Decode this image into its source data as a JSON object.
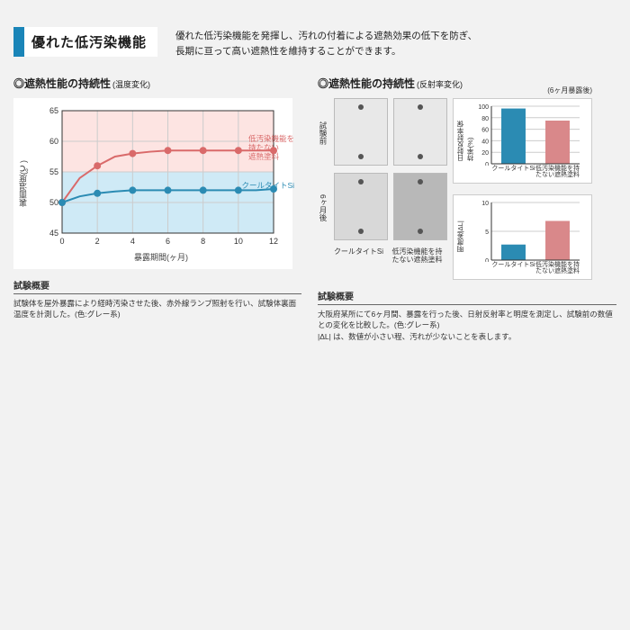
{
  "header": {
    "title": "優れた低汚染機能",
    "intro_line1": "優れた低汚染機能を発揮し、汚れの付着による遮熱効果の低下を防ぎ、",
    "intro_line2": "長期に亘って高い遮熱性を維持することができます。"
  },
  "left": {
    "subheading_prefix": "◎遮熱性能の持続性",
    "subheading_paren": "(温度変化)",
    "chart": {
      "type": "line",
      "background_color": "#ffffff",
      "plot_upper_fill": "#fde4e2",
      "plot_lower_fill": "#cfeaf6",
      "grid_color": "#cccccc",
      "border_color": "#333333",
      "xlim": [
        0,
        12
      ],
      "xtick_step": 2,
      "xticks": [
        0,
        2,
        4,
        6,
        8,
        10,
        12
      ],
      "ylim": [
        45,
        65
      ],
      "ytick_step": 5,
      "yticks": [
        45,
        50,
        55,
        60,
        65
      ],
      "divider_y": 55,
      "ylabel": "裏面温度(℃)",
      "xlabel": "暴露期間(ヶ月)",
      "label_fontsize": 9,
      "tick_fontsize": 9,
      "series": [
        {
          "name": "低汚染機能を持たない遮熱塗料",
          "name_lines": [
            "低汚染機能を",
            "持たない",
            "遮熱塗料"
          ],
          "color": "#d96a6a",
          "line_width": 2,
          "marker": "circle",
          "marker_size": 4,
          "x": [
            0,
            1,
            2,
            3,
            4,
            5,
            6,
            7,
            8,
            9,
            10,
            11,
            12
          ],
          "y": [
            50,
            54,
            56,
            57.5,
            58,
            58.3,
            58.5,
            58.5,
            58.5,
            58.5,
            58.5,
            58.5,
            58.5
          ],
          "label_pos": {
            "right": -2,
            "top": 40
          }
        },
        {
          "name": "クールタイトSi",
          "color": "#2b8bb3",
          "line_width": 2,
          "marker": "circle",
          "marker_size": 4,
          "x": [
            0,
            1,
            2,
            3,
            4,
            5,
            6,
            7,
            8,
            9,
            10,
            11,
            12
          ],
          "y": [
            50,
            51,
            51.5,
            51.8,
            52,
            52,
            52,
            52,
            52,
            52,
            52,
            52,
            52.2
          ],
          "label_pos": {
            "right": -2,
            "top": 92
          }
        }
      ]
    },
    "summary_title": "試験概要",
    "summary_body": "試験体を屋外暴露により経時汚染させた後、赤外線ランプ照射を行い、試験体裏面温度を計測した。(色:グレー系)"
  },
  "right": {
    "subheading_prefix": "◎遮熱性能の持続性",
    "subheading_paren": "(反射率変化)",
    "subheading_note": "(6ヶ月暴露後)",
    "panel": {
      "row_labels": [
        "試験前",
        "6ヶ月後"
      ],
      "col_labels": [
        "クールタイトSi",
        "低汚染機能を持たない遮熱塗料"
      ],
      "before_color": "#e8e8e8",
      "after_colors": [
        "#d8d8d8",
        "#b8b8b8"
      ]
    },
    "bar1": {
      "type": "bar",
      "ylabel": "日射反射率保持率(%)",
      "ylim": [
        0,
        100
      ],
      "ytick_step": 20,
      "yticks": [
        0,
        20,
        40,
        60,
        80,
        100
      ],
      "categories": [
        "クールタイトSi",
        "低汚染機能を持たない遮熱塗料"
      ],
      "values": [
        96,
        75
      ],
      "bar_colors": [
        "#2b8bb3",
        "#d9888a"
      ],
      "grid_color": "#cccccc",
      "background_color": "#ffffff",
      "bar_width": 0.55,
      "label_fontsize": 7.5
    },
    "bar2": {
      "type": "bar",
      "ylabel": "明度差|ΔL|",
      "ylim": [
        0,
        10
      ],
      "ytick_step": 5,
      "yticks": [
        0,
        5,
        10
      ],
      "categories": [
        "クールタイトSi",
        "低汚染機能を持たない遮熱塗料"
      ],
      "values": [
        2.7,
        6.8
      ],
      "bar_colors": [
        "#2b8bb3",
        "#d9888a"
      ],
      "grid_color": "#cccccc",
      "background_color": "#ffffff",
      "bar_width": 0.55,
      "label_fontsize": 7.5
    },
    "summary_title": "試験概要",
    "summary_body1": "大阪府某所にて6ヶ月間、暴露を行った後、日射反射率と明度を測定し、試験前の数値との変化を比較した。(色:グレー系)",
    "summary_body2": "|ΔL| は、数値が小さい程、汚れが少ないことを表します。"
  }
}
